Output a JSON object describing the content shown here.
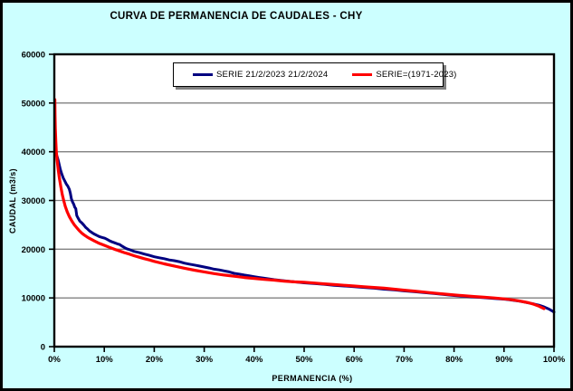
{
  "chart_data": {
    "type": "line",
    "title": "CURVA DE PERMANENCIA DE CAUDALES - CHY",
    "xlabel": "PERMANENCIA (%)",
    "ylabel": "CAUDAL (m3/s)",
    "xlim": [
      0,
      100
    ],
    "ylim": [
      0,
      60000
    ],
    "x_tick_values": [
      0,
      10,
      20,
      30,
      40,
      50,
      60,
      70,
      80,
      90,
      100
    ],
    "x_tick_labels": [
      "0%",
      "10%",
      "20%",
      "30%",
      "40%",
      "50%",
      "60%",
      "70%",
      "80%",
      "90%",
      "100%"
    ],
    "y_tick_values": [
      0,
      10000,
      20000,
      30000,
      40000,
      50000,
      60000
    ],
    "y_tick_labels": [
      "0",
      "10000",
      "20000",
      "30000",
      "40000",
      "50000",
      "60000"
    ],
    "grid": "horizontal",
    "gridline_color": "#808080",
    "plot_background": "#FFFFFF",
    "outer_background": "#CCFFFF",
    "legend_position": "top-center",
    "series": [
      {
        "name": "SERIE 21/2/2023 21/2/2024",
        "color": "#000080",
        "points": [
          [
            0.2,
            40000
          ],
          [
            0.4,
            39500
          ],
          [
            0.6,
            38900
          ],
          [
            0.8,
            38200
          ],
          [
            1.0,
            37300
          ],
          [
            1.2,
            36400
          ],
          [
            1.5,
            35400
          ],
          [
            1.8,
            34600
          ],
          [
            2.1,
            34000
          ],
          [
            2.4,
            33400
          ],
          [
            2.7,
            32950
          ],
          [
            3.0,
            32300
          ],
          [
            3.2,
            31500
          ],
          [
            3.4,
            30400
          ],
          [
            3.6,
            29800
          ],
          [
            3.9,
            29200
          ],
          [
            4.1,
            28600
          ],
          [
            4.3,
            28350
          ],
          [
            4.5,
            26900
          ],
          [
            4.8,
            26300
          ],
          [
            5.1,
            25750
          ],
          [
            5.5,
            25400
          ],
          [
            5.9,
            24950
          ],
          [
            6.3,
            24450
          ],
          [
            6.7,
            24100
          ],
          [
            7.1,
            23700
          ],
          [
            7.6,
            23350
          ],
          [
            8.1,
            23050
          ],
          [
            8.6,
            22800
          ],
          [
            9.1,
            22550
          ],
          [
            9.6,
            22400
          ],
          [
            10.1,
            22250
          ],
          [
            10.6,
            22000
          ],
          [
            11.1,
            21700
          ],
          [
            11.6,
            21500
          ],
          [
            12.1,
            21300
          ],
          [
            12.6,
            21100
          ],
          [
            13.1,
            20950
          ],
          [
            13.6,
            20600
          ],
          [
            14.1,
            20300
          ],
          [
            14.6,
            20050
          ],
          [
            15.2,
            19850
          ],
          [
            16,
            19550
          ],
          [
            17,
            19300
          ],
          [
            18,
            19000
          ],
          [
            19,
            18750
          ],
          [
            20,
            18450
          ],
          [
            21,
            18250
          ],
          [
            22,
            18050
          ],
          [
            23,
            17800
          ],
          [
            24,
            17650
          ],
          [
            25,
            17450
          ],
          [
            26,
            17150
          ],
          [
            27,
            16950
          ],
          [
            28,
            16750
          ],
          [
            29,
            16550
          ],
          [
            30,
            16350
          ],
          [
            31,
            16150
          ],
          [
            32,
            15900
          ],
          [
            33,
            15750
          ],
          [
            34,
            15550
          ],
          [
            35,
            15350
          ],
          [
            36,
            15050
          ],
          [
            37,
            14900
          ],
          [
            38,
            14700
          ],
          [
            39,
            14550
          ],
          [
            40,
            14350
          ],
          [
            41,
            14200
          ],
          [
            42,
            14050
          ],
          [
            44,
            13750
          ],
          [
            46,
            13500
          ],
          [
            48,
            13300
          ],
          [
            50,
            13100
          ],
          [
            52,
            12950
          ],
          [
            54,
            12800
          ],
          [
            56,
            12600
          ],
          [
            58,
            12450
          ],
          [
            60,
            12300
          ],
          [
            62,
            12150
          ],
          [
            64,
            12000
          ],
          [
            66,
            11800
          ],
          [
            68,
            11650
          ],
          [
            70,
            11450
          ],
          [
            72,
            11300
          ],
          [
            74,
            11100
          ],
          [
            76,
            10900
          ],
          [
            78,
            10700
          ],
          [
            80,
            10500
          ],
          [
            82,
            10350
          ],
          [
            84,
            10200
          ],
          [
            86,
            10050
          ],
          [
            88,
            9900
          ],
          [
            90,
            9750
          ],
          [
            91,
            9650
          ],
          [
            92,
            9500
          ],
          [
            93,
            9350
          ],
          [
            94,
            9150
          ],
          [
            95,
            8950
          ],
          [
            96,
            8750
          ],
          [
            97,
            8500
          ],
          [
            98,
            8150
          ],
          [
            99,
            7700
          ],
          [
            99.6,
            7350
          ],
          [
            100,
            7100
          ]
        ]
      },
      {
        "name": "SERIE=(1971-2023)",
        "color": "#FF0000",
        "points": [
          [
            0.1,
            50700
          ],
          [
            0.15,
            47500
          ],
          [
            0.2,
            44800
          ],
          [
            0.3,
            42000
          ],
          [
            0.4,
            40000
          ],
          [
            0.6,
            38000
          ],
          [
            0.8,
            36200
          ],
          [
            1.0,
            34700
          ],
          [
            1.3,
            32800
          ],
          [
            1.6,
            31200
          ],
          [
            1.9,
            29900
          ],
          [
            2.2,
            28800
          ],
          [
            2.6,
            27600
          ],
          [
            3.0,
            26700
          ],
          [
            3.5,
            25800
          ],
          [
            4.0,
            25000
          ],
          [
            4.5,
            24400
          ],
          [
            5.0,
            23800
          ],
          [
            5.5,
            23300
          ],
          [
            6.0,
            22900
          ],
          [
            6.5,
            22550
          ],
          [
            7.0,
            22250
          ],
          [
            8.0,
            21700
          ],
          [
            9.0,
            21200
          ],
          [
            10,
            20800
          ],
          [
            11,
            20400
          ],
          [
            12,
            20000
          ],
          [
            13,
            19650
          ],
          [
            14,
            19300
          ],
          [
            15,
            19000
          ],
          [
            16,
            18650
          ],
          [
            17,
            18350
          ],
          [
            18,
            18050
          ],
          [
            19,
            17800
          ],
          [
            20,
            17500
          ],
          [
            22,
            17000
          ],
          [
            24,
            16550
          ],
          [
            26,
            16100
          ],
          [
            28,
            15700
          ],
          [
            30,
            15350
          ],
          [
            32,
            15000
          ],
          [
            34,
            14700
          ],
          [
            36,
            14450
          ],
          [
            38,
            14200
          ],
          [
            40,
            14000
          ],
          [
            42,
            13800
          ],
          [
            44,
            13650
          ],
          [
            46,
            13450
          ],
          [
            48,
            13300
          ],
          [
            50,
            13200
          ],
          [
            52,
            13050
          ],
          [
            54,
            12900
          ],
          [
            56,
            12750
          ],
          [
            58,
            12600
          ],
          [
            60,
            12450
          ],
          [
            62,
            12300
          ],
          [
            64,
            12150
          ],
          [
            66,
            12000
          ],
          [
            68,
            11800
          ],
          [
            70,
            11600
          ],
          [
            72,
            11400
          ],
          [
            74,
            11200
          ],
          [
            76,
            11000
          ],
          [
            78,
            10800
          ],
          [
            80,
            10600
          ],
          [
            82,
            10450
          ],
          [
            84,
            10300
          ],
          [
            86,
            10150
          ],
          [
            88,
            10000
          ],
          [
            90,
            9800
          ],
          [
            91,
            9700
          ],
          [
            92,
            9550
          ],
          [
            93,
            9400
          ],
          [
            94,
            9200
          ],
          [
            95,
            9000
          ],
          [
            96,
            8700
          ],
          [
            97,
            8300
          ],
          [
            97.5,
            8050
          ],
          [
            98,
            7800
          ]
        ]
      }
    ]
  }
}
